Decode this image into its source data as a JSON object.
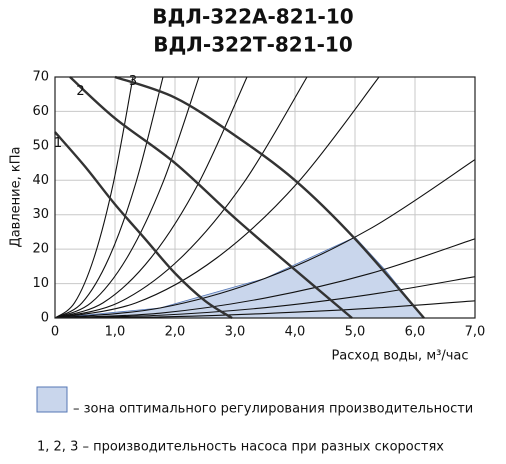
{
  "chart_data": {
    "type": "line",
    "title": "ВДЛ-322А-821-10",
    "subtitle": "ВДЛ-322Т-821-10",
    "x_label": "Расход воды, м³/час",
    "y_label": "Давление, кПа",
    "xlim": [
      0,
      7
    ],
    "ylim": [
      0,
      70
    ],
    "xticks": [
      0,
      {
        "value": 1,
        "label": "1,0"
      },
      {
        "value": 2,
        "label": "2,0"
      },
      {
        "value": 3,
        "label": "3,0"
      },
      {
        "value": 4,
        "label": "4,0"
      },
      {
        "value": 5,
        "label": "5,0"
      },
      {
        "value": 6,
        "label": "6,0"
      },
      {
        "value": 7,
        "label": "7,0"
      }
    ],
    "yticks": [
      0,
      10,
      20,
      30,
      40,
      50,
      60,
      70
    ],
    "grid": true,
    "series": [
      {
        "name": "1",
        "color": "#333333",
        "x": [
          0,
          0.5,
          1.0,
          1.5,
          2.0,
          2.5,
          2.95
        ],
        "values": [
          54,
          44,
          33,
          23,
          13,
          5,
          0
        ]
      },
      {
        "name": "2",
        "color": "#333333",
        "x": [
          0.25,
          1,
          2,
          3,
          4,
          4.95
        ],
        "values": [
          70,
          58,
          45,
          29,
          14,
          0
        ]
      },
      {
        "name": "3",
        "color": "#333333",
        "x": [
          1.0,
          2,
          3,
          4,
          5,
          6.15
        ],
        "values": [
          70,
          64,
          53,
          40,
          23,
          0
        ]
      }
    ],
    "system_curves": [
      {
        "x": [
          0,
          0.325,
          0.65,
          0.975,
          1.3
        ],
        "values": [
          0,
          4.4,
          17.5,
          39.4,
          70
        ]
      },
      {
        "x": [
          0,
          0.45,
          0.9,
          1.35,
          1.8
        ],
        "values": [
          0,
          4.4,
          17.5,
          39.4,
          70
        ]
      },
      {
        "x": [
          0,
          0.6,
          1.2,
          1.8,
          2.4
        ],
        "values": [
          0,
          4.4,
          17.5,
          39.4,
          70
        ]
      },
      {
        "x": [
          0,
          0.8,
          1.6,
          2.4,
          3.2
        ],
        "values": [
          0,
          4.4,
          17.5,
          39.4,
          70
        ]
      },
      {
        "x": [
          0,
          1.05,
          2.1,
          3.15,
          4.2
        ],
        "values": [
          0,
          4.4,
          17.5,
          39.4,
          70
        ]
      },
      {
        "x": [
          0,
          1.35,
          2.7,
          4.05,
          5.4
        ],
        "values": [
          0,
          4.4,
          17.5,
          39.4,
          70
        ]
      },
      {
        "x": [
          0,
          1.75,
          3.5,
          5.25,
          7
        ],
        "values": [
          0,
          2.9,
          11.5,
          25.9,
          46
        ]
      },
      {
        "x": [
          0,
          1.75,
          3.5,
          5.25,
          7
        ],
        "values": [
          0,
          1.4,
          5.8,
          12.9,
          23
        ]
      },
      {
        "x": [
          0,
          1.75,
          3.5,
          5.25,
          7
        ],
        "values": [
          0,
          0.8,
          3,
          6.8,
          12
        ]
      },
      {
        "x": [
          0,
          1.75,
          3.5,
          5.25,
          7
        ],
        "values": [
          0,
          0.3,
          1.3,
          2.8,
          5
        ]
      }
    ],
    "system_color": "#111111",
    "zone": {
      "color": "#c9d6ec",
      "edge_color": "#5577b5",
      "x": [
        0,
        1.75,
        3.5,
        5,
        5.5,
        6.15
      ],
      "values": [
        0,
        2.9,
        11.5,
        23.5,
        14,
        0
      ]
    },
    "legend_zone": "– зона оптимального регулирования производительности",
    "legend_curves": "1, 2, 3 – производительность насоса при разных скоростях"
  }
}
